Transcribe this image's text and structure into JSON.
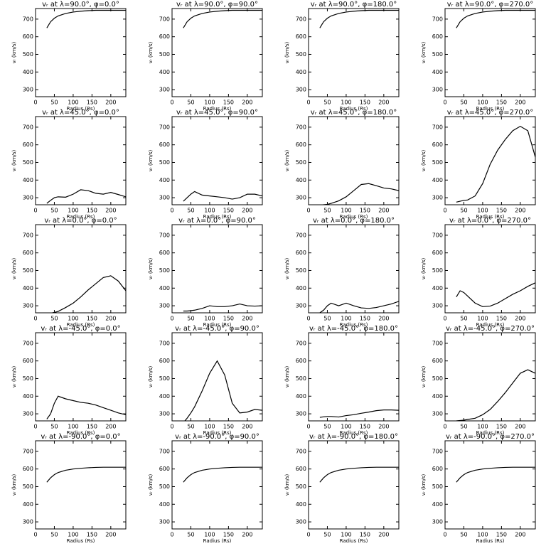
{
  "chart_data": [
    {
      "type": "line",
      "title": "vᵣ at λ=90.0°, φ=0.0°",
      "x_label": "Radius (Rs)",
      "y_label": "vᵣ (km/s)",
      "color": "#000000",
      "xlim": [
        0,
        240
      ],
      "ylim": [
        260,
        760
      ],
      "xticks": [
        0,
        50,
        100,
        150,
        200
      ],
      "yticks": [
        300,
        400,
        500,
        600,
        700
      ],
      "x": [
        30,
        40,
        50,
        60,
        80,
        100,
        120,
        140,
        160,
        180,
        200,
        220,
        240
      ],
      "values": [
        650,
        685,
        705,
        718,
        732,
        740,
        745,
        748,
        750,
        750,
        750,
        750,
        750
      ]
    },
    {
      "type": "line",
      "title": "vᵣ at λ=90.0°, φ=90.0°",
      "x_label": "Radius (Rs)",
      "y_label": "vᵣ (km/s)",
      "color": "#000000",
      "xlim": [
        0,
        240
      ],
      "ylim": [
        260,
        760
      ],
      "xticks": [
        0,
        50,
        100,
        150,
        200
      ],
      "yticks": [
        300,
        400,
        500,
        600,
        700
      ],
      "x": [
        30,
        40,
        50,
        60,
        80,
        100,
        120,
        140,
        160,
        180,
        200,
        220,
        240
      ],
      "values": [
        650,
        685,
        705,
        718,
        732,
        740,
        745,
        748,
        750,
        750,
        750,
        750,
        750
      ]
    },
    {
      "type": "line",
      "title": "vᵣ at λ=90.0°, φ=180.0°",
      "x_label": "Radius (Rs)",
      "y_label": "vᵣ (km/s)",
      "color": "#000000",
      "xlim": [
        0,
        240
      ],
      "ylim": [
        260,
        760
      ],
      "xticks": [
        0,
        50,
        100,
        150,
        200
      ],
      "yticks": [
        300,
        400,
        500,
        600,
        700
      ],
      "x": [
        30,
        40,
        50,
        60,
        80,
        100,
        120,
        140,
        160,
        180,
        200,
        220,
        240
      ],
      "values": [
        650,
        685,
        705,
        718,
        732,
        740,
        745,
        748,
        750,
        750,
        750,
        750,
        750
      ]
    },
    {
      "type": "line",
      "title": "vᵣ at λ=90.0°, φ=270.0°",
      "x_label": "Radius (Rs)",
      "y_label": "vᵣ (km/s)",
      "color": "#000000",
      "xlim": [
        0,
        240
      ],
      "ylim": [
        260,
        760
      ],
      "xticks": [
        0,
        50,
        100,
        150,
        200
      ],
      "yticks": [
        300,
        400,
        500,
        600,
        700
      ],
      "x": [
        30,
        40,
        50,
        60,
        80,
        100,
        120,
        140,
        160,
        180,
        200,
        220,
        240
      ],
      "values": [
        650,
        685,
        705,
        718,
        732,
        740,
        745,
        748,
        750,
        750,
        750,
        750,
        750
      ]
    },
    {
      "type": "line",
      "title": "vᵣ at λ=45.0°, φ=0.0°",
      "x_label": "Radius (Rs)",
      "y_label": "vᵣ (km/s)",
      "color": "#000000",
      "xlim": [
        0,
        240
      ],
      "ylim": [
        260,
        760
      ],
      "xticks": [
        0,
        50,
        100,
        150,
        200
      ],
      "yticks": [
        300,
        400,
        500,
        600,
        700
      ],
      "x": [
        30,
        40,
        50,
        60,
        80,
        100,
        120,
        140,
        160,
        180,
        200,
        220,
        240
      ],
      "values": [
        268,
        285,
        300,
        305,
        303,
        320,
        345,
        340,
        325,
        320,
        330,
        318,
        305
      ]
    },
    {
      "type": "line",
      "title": "vᵣ at λ=45.0°, φ=90.0°",
      "x_label": "Radius (Rs)",
      "y_label": "vᵣ (km/s)",
      "color": "#000000",
      "xlim": [
        0,
        240
      ],
      "ylim": [
        260,
        760
      ],
      "xticks": [
        0,
        50,
        100,
        150,
        200
      ],
      "yticks": [
        300,
        400,
        500,
        600,
        700
      ],
      "x": [
        30,
        40,
        50,
        60,
        80,
        100,
        120,
        140,
        160,
        180,
        200,
        220,
        240
      ],
      "values": [
        280,
        300,
        320,
        335,
        315,
        310,
        305,
        300,
        292,
        300,
        320,
        320,
        310
      ]
    },
    {
      "type": "line",
      "title": "vᵣ at λ=45.0°, φ=180.0°",
      "x_label": "Radius (Rs)",
      "y_label": "vᵣ (km/s)",
      "color": "#000000",
      "xlim": [
        0,
        240
      ],
      "ylim": [
        260,
        760
      ],
      "xticks": [
        0,
        50,
        100,
        150,
        200
      ],
      "yticks": [
        300,
        400,
        500,
        600,
        700
      ],
      "x": [
        30,
        40,
        50,
        60,
        80,
        100,
        120,
        140,
        160,
        180,
        200,
        220,
        240
      ],
      "values": [
        258,
        260,
        262,
        268,
        282,
        305,
        340,
        375,
        380,
        368,
        355,
        350,
        340
      ]
    },
    {
      "type": "line",
      "title": "vᵣ at λ=45.0°, φ=270.0°",
      "x_label": "Radius (Rs)",
      "y_label": "vᵣ (km/s)",
      "color": "#000000",
      "xlim": [
        0,
        240
      ],
      "ylim": [
        260,
        760
      ],
      "xticks": [
        0,
        50,
        100,
        150,
        200
      ],
      "yticks": [
        300,
        400,
        500,
        600,
        700
      ],
      "x": [
        30,
        40,
        50,
        60,
        80,
        100,
        120,
        140,
        160,
        180,
        200,
        220,
        240
      ],
      "values": [
        275,
        280,
        285,
        287,
        310,
        380,
        490,
        570,
        630,
        680,
        705,
        680,
        530
      ]
    },
    {
      "type": "line",
      "title": "vᵣ at λ=0.0°, φ=0.0°",
      "x_label": "Radius (Rs)",
      "y_label": "vᵣ (km/s)",
      "color": "#000000",
      "xlim": [
        0,
        240
      ],
      "ylim": [
        260,
        760
      ],
      "xticks": [
        0,
        50,
        100,
        150,
        200
      ],
      "yticks": [
        300,
        400,
        500,
        600,
        700
      ],
      "x": [
        30,
        40,
        50,
        60,
        80,
        100,
        120,
        140,
        160,
        180,
        200,
        220,
        240
      ],
      "values": [
        255,
        258,
        262,
        268,
        290,
        315,
        350,
        390,
        425,
        460,
        470,
        440,
        385
      ]
    },
    {
      "type": "line",
      "title": "vᵣ at λ=0.0°, φ=90.0°",
      "x_label": "Radius (Rs)",
      "y_label": "vᵣ (km/s)",
      "color": "#000000",
      "xlim": [
        0,
        240
      ],
      "ylim": [
        260,
        760
      ],
      "xticks": [
        0,
        50,
        100,
        150,
        200
      ],
      "yticks": [
        300,
        400,
        500,
        600,
        700
      ],
      "x": [
        30,
        40,
        50,
        60,
        80,
        100,
        120,
        140,
        160,
        180,
        200,
        220,
        240
      ],
      "values": [
        270,
        270,
        272,
        275,
        285,
        300,
        295,
        295,
        300,
        310,
        300,
        298,
        300
      ]
    },
    {
      "type": "line",
      "title": "vᵣ at λ=0.0°, φ=180.0°",
      "x_label": "Radius (Rs)",
      "y_label": "vᵣ (km/s)",
      "color": "#000000",
      "xlim": [
        0,
        240
      ],
      "ylim": [
        260,
        760
      ],
      "xticks": [
        0,
        50,
        100,
        150,
        200
      ],
      "yticks": [
        300,
        400,
        500,
        600,
        700
      ],
      "x": [
        30,
        40,
        50,
        60,
        80,
        100,
        120,
        140,
        160,
        180,
        200,
        220,
        240
      ],
      "values": [
        260,
        275,
        300,
        315,
        300,
        315,
        300,
        288,
        285,
        290,
        300,
        310,
        325
      ]
    },
    {
      "type": "line",
      "title": "vᵣ at λ=0.0°, φ=270.0°",
      "x_label": "Radius (Rs)",
      "y_label": "vᵣ (km/s)",
      "color": "#000000",
      "xlim": [
        0,
        240
      ],
      "ylim": [
        260,
        760
      ],
      "xticks": [
        0,
        50,
        100,
        150,
        200
      ],
      "yticks": [
        300,
        400,
        500,
        600,
        700
      ],
      "x": [
        30,
        40,
        50,
        60,
        80,
        100,
        120,
        140,
        160,
        180,
        200,
        220,
        240
      ],
      "values": [
        350,
        385,
        375,
        355,
        315,
        295,
        298,
        315,
        340,
        365,
        385,
        410,
        430
      ]
    },
    {
      "type": "line",
      "title": "vᵣ at λ=-45.0°, φ=0.0°",
      "x_label": "Radius (Rs)",
      "y_label": "vᵣ (km/s)",
      "color": "#000000",
      "xlim": [
        0,
        240
      ],
      "ylim": [
        260,
        760
      ],
      "xticks": [
        0,
        50,
        100,
        150,
        200
      ],
      "yticks": [
        300,
        400,
        500,
        600,
        700
      ],
      "x": [
        30,
        40,
        50,
        60,
        80,
        100,
        120,
        140,
        160,
        180,
        200,
        220,
        240
      ],
      "values": [
        270,
        300,
        360,
        400,
        385,
        375,
        365,
        360,
        350,
        335,
        320,
        305,
        295
      ]
    },
    {
      "type": "line",
      "title": "vᵣ at λ=-45.0°, φ=90.0°",
      "x_label": "Radius (Rs)",
      "y_label": "vᵣ (km/s)",
      "color": "#000000",
      "xlim": [
        0,
        240
      ],
      "ylim": [
        260,
        760
      ],
      "xticks": [
        0,
        50,
        100,
        150,
        200
      ],
      "yticks": [
        300,
        400,
        500,
        600,
        700
      ],
      "x": [
        30,
        40,
        50,
        60,
        80,
        100,
        120,
        140,
        160,
        180,
        200,
        220,
        240
      ],
      "values": [
        250,
        275,
        305,
        340,
        430,
        530,
        600,
        520,
        360,
        305,
        310,
        325,
        320
      ]
    },
    {
      "type": "line",
      "title": "vᵣ at λ=-45.0°, φ=180.0°",
      "x_label": "Radius (Rs)",
      "y_label": "vᵣ (km/s)",
      "color": "#000000",
      "xlim": [
        0,
        240
      ],
      "ylim": [
        260,
        760
      ],
      "xticks": [
        0,
        50,
        100,
        150,
        200
      ],
      "yticks": [
        300,
        400,
        500,
        600,
        700
      ],
      "x": [
        30,
        40,
        50,
        60,
        80,
        100,
        120,
        140,
        160,
        180,
        200,
        220,
        240
      ],
      "values": [
        280,
        283,
        285,
        285,
        282,
        290,
        295,
        303,
        310,
        318,
        322,
        322,
        320
      ]
    },
    {
      "type": "line",
      "title": "vᵣ at λ=-45.0°, φ=270.0°",
      "x_label": "Radius (Rs)",
      "y_label": "vᵣ (km/s)",
      "color": "#000000",
      "xlim": [
        0,
        240
      ],
      "ylim": [
        260,
        760
      ],
      "xticks": [
        0,
        50,
        100,
        150,
        200
      ],
      "yticks": [
        300,
        400,
        500,
        600,
        700
      ],
      "x": [
        30,
        40,
        50,
        60,
        80,
        100,
        120,
        140,
        160,
        180,
        200,
        220,
        240
      ],
      "values": [
        260,
        262,
        264,
        268,
        275,
        295,
        325,
        370,
        420,
        475,
        530,
        550,
        530
      ]
    },
    {
      "type": "line",
      "title": "vᵣ at λ=-90.0°, φ=0.0°",
      "x_label": "Radius (Rs)",
      "y_label": "vᵣ (km/s)",
      "color": "#000000",
      "xlim": [
        0,
        240
      ],
      "ylim": [
        260,
        760
      ],
      "xticks": [
        0,
        50,
        100,
        150,
        200
      ],
      "yticks": [
        300,
        400,
        500,
        600,
        700
      ],
      "x": [
        30,
        40,
        50,
        60,
        80,
        100,
        120,
        140,
        160,
        180,
        200,
        220,
        240
      ],
      "values": [
        525,
        550,
        568,
        580,
        593,
        600,
        604,
        607,
        609,
        610,
        610,
        610,
        610
      ]
    },
    {
      "type": "line",
      "title": "vᵣ at λ=-90.0°, φ=90.0°",
      "x_label": "Radius (Rs)",
      "y_label": "vᵣ (km/s)",
      "color": "#000000",
      "xlim": [
        0,
        240
      ],
      "ylim": [
        260,
        760
      ],
      "xticks": [
        0,
        50,
        100,
        150,
        200
      ],
      "yticks": [
        300,
        400,
        500,
        600,
        700
      ],
      "x": [
        30,
        40,
        50,
        60,
        80,
        100,
        120,
        140,
        160,
        180,
        200,
        220,
        240
      ],
      "values": [
        525,
        550,
        568,
        580,
        593,
        600,
        604,
        607,
        609,
        610,
        610,
        610,
        610
      ]
    },
    {
      "type": "line",
      "title": "vᵣ at λ=-90.0°, φ=180.0°",
      "x_label": "Radius (Rs)",
      "y_label": "vᵣ (km/s)",
      "color": "#000000",
      "xlim": [
        0,
        240
      ],
      "ylim": [
        260,
        760
      ],
      "xticks": [
        0,
        50,
        100,
        150,
        200
      ],
      "yticks": [
        300,
        400,
        500,
        600,
        700
      ],
      "x": [
        30,
        40,
        50,
        60,
        80,
        100,
        120,
        140,
        160,
        180,
        200,
        220,
        240
      ],
      "values": [
        525,
        550,
        568,
        580,
        593,
        600,
        604,
        607,
        609,
        610,
        610,
        610,
        610
      ]
    },
    {
      "type": "line",
      "title": "vᵣ at λ=-90.0°, φ=270.0°",
      "x_label": "Radius (Rs)",
      "y_label": "vᵣ (km/s)",
      "color": "#000000",
      "xlim": [
        0,
        240
      ],
      "ylim": [
        260,
        760
      ],
      "xticks": [
        0,
        50,
        100,
        150,
        200
      ],
      "yticks": [
        300,
        400,
        500,
        600,
        700
      ],
      "x": [
        30,
        40,
        50,
        60,
        80,
        100,
        120,
        140,
        160,
        180,
        200,
        220,
        240
      ],
      "values": [
        525,
        550,
        568,
        580,
        593,
        600,
        604,
        607,
        609,
        610,
        610,
        610,
        610
      ]
    }
  ]
}
